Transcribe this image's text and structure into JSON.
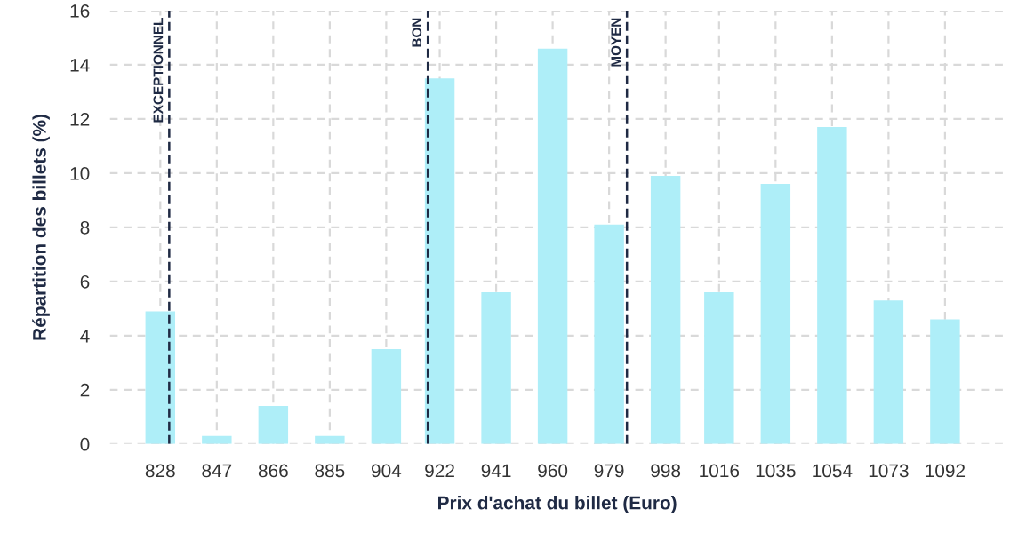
{
  "chart_data": {
    "type": "bar",
    "xlabel": "Prix d'achat du billet (Euro)",
    "ylabel": "Répartition des billets (%)",
    "x": [
      828,
      847,
      866,
      885,
      904,
      922,
      941,
      960,
      979,
      998,
      1016,
      1035,
      1054,
      1073,
      1092
    ],
    "values": [
      4.9,
      0.3,
      1.4,
      0.3,
      3.5,
      13.5,
      5.6,
      14.6,
      8.1,
      9.9,
      5.6,
      9.6,
      11.7,
      5.3,
      4.6
    ],
    "color": "#aeeef8",
    "xlim": [
      811,
      1112
    ],
    "xticks": [
      828,
      847,
      866,
      885,
      904,
      922,
      941,
      960,
      979,
      998,
      1016,
      1035,
      1054,
      1073,
      1092
    ],
    "ylim": [
      0,
      16
    ],
    "yticks": [
      0,
      2,
      4,
      6,
      8,
      10,
      12,
      14,
      16
    ],
    "grid": true,
    "ref_lines": [
      {
        "axis": "x",
        "value": 831,
        "label": "EXCEPTIONNEL",
        "color": "#1f2a44",
        "line_style": "dashed"
      },
      {
        "axis": "x",
        "value": 918,
        "label": "BON",
        "color": "#1f2a44",
        "line_style": "dashed"
      },
      {
        "axis": "x",
        "value": 985,
        "label": "MOYEN",
        "color": "#1f2a44",
        "line_style": "dashed"
      }
    ]
  }
}
